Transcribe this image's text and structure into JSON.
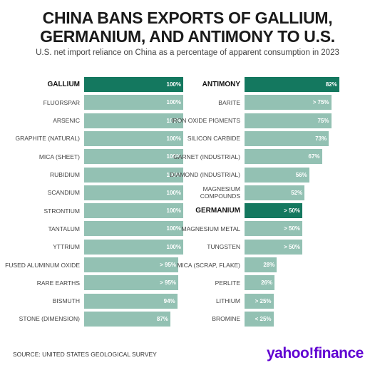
{
  "title": "CHINA BANS EXPORTS OF GALLIUM, GERMANIUM, AND ANTIMONY TO U.S.",
  "subtitle": "U.S. net import reliance on China as a percentage of apparent consumption in 2023",
  "source": "SOURCE: UNITED STATES GEOLOGICAL SURVEY",
  "brand": "yahoo!finance",
  "chart_data": [
    {
      "type": "bar",
      "orientation": "horizontal",
      "categories": [
        "GALLIUM",
        "FLUORSPAR",
        "ARSENIC",
        "GRAPHITE (NATURAL)",
        "MICA (SHEET)",
        "RUBIDIUM",
        "SCANDIUM",
        "STRONTIUM",
        "TANTALUM",
        "YTTRIUM",
        "FUSED ALUMINUM OXIDE",
        "RARE EARTHS",
        "BISMUTH",
        "STONE (DIMENSION)"
      ],
      "values": [
        100,
        100,
        100,
        100,
        100,
        100,
        100,
        100,
        100,
        100,
        95,
        95,
        94,
        87
      ],
      "value_labels": [
        "100%",
        "100%",
        "100%",
        "100%",
        "100%",
        "100%",
        "100%",
        "100%",
        "100%",
        "100%",
        "> 95%",
        "> 95%",
        "94%",
        "87%"
      ],
      "colors": [
        "#14785f",
        "#93c1b3",
        "#93c1b3",
        "#93c1b3",
        "#93c1b3",
        "#93c1b3",
        "#93c1b3",
        "#93c1b3",
        "#93c1b3",
        "#93c1b3",
        "#93c1b3",
        "#93c1b3",
        "#93c1b3",
        "#93c1b3"
      ],
      "xlim": [
        0,
        100
      ]
    },
    {
      "type": "bar",
      "orientation": "horizontal",
      "categories": [
        "ANTIMONY",
        "BARITE",
        "IRON OXIDE PIGMENTS",
        "SILICON CARBIDE",
        "GARNET (INDUSTRIAL)",
        "DIAMOND (INDUSTRIAL)",
        "MAGNESIUM COMPOUNDS",
        "GERMANIUM",
        "MAGNESIUM METAL",
        "TUNGSTEN",
        "MICA (SCRAP, FLAKE)",
        "PERLITE",
        "LITHIUM",
        "BROMINE"
      ],
      "values": [
        82,
        75,
        75,
        73,
        67,
        56,
        52,
        50,
        50,
        50,
        28,
        26,
        25,
        25
      ],
      "value_labels": [
        "82%",
        "> 75%",
        "75%",
        "73%",
        "67%",
        "56%",
        "52%",
        "> 50%",
        "> 50%",
        "> 50%",
        "28%",
        "26%",
        "> 25%",
        "< 25%"
      ],
      "colors": [
        "#14785f",
        "#93c1b3",
        "#93c1b3",
        "#93c1b3",
        "#93c1b3",
        "#93c1b3",
        "#93c1b3",
        "#14785f",
        "#93c1b3",
        "#93c1b3",
        "#93c1b3",
        "#93c1b3",
        "#93c1b3",
        "#93c1b3"
      ],
      "xlim": [
        0,
        100
      ]
    }
  ]
}
